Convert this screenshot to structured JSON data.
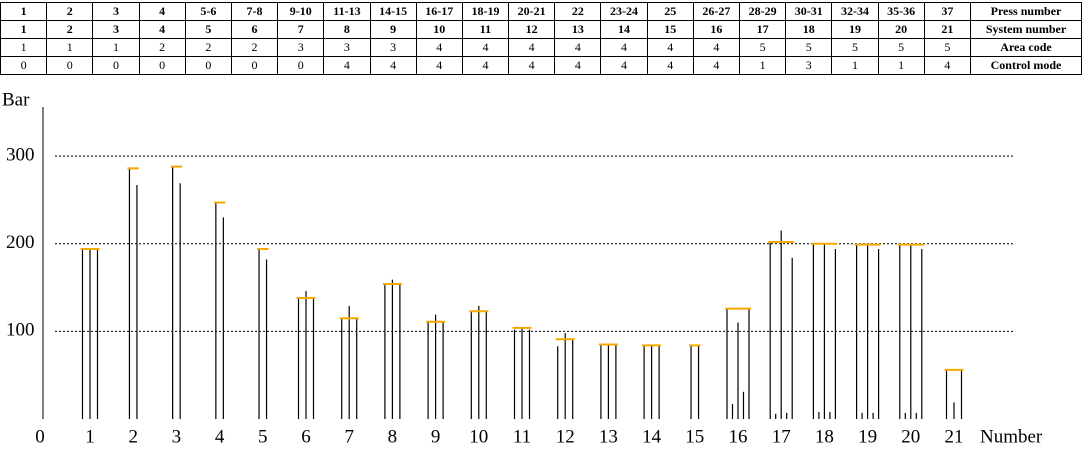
{
  "table": {
    "rows": [
      {
        "label": "Press number",
        "cells": [
          "1",
          "2",
          "3",
          "4",
          "5-6",
          "7-8",
          "9-10",
          "11-13",
          "14-15",
          "16-17",
          "18-19",
          "20-21",
          "22",
          "23-24",
          "25",
          "26-27",
          "28-29",
          "30-31",
          "32-34",
          "35-36",
          "37"
        ]
      },
      {
        "label": "System number",
        "cells": [
          "1",
          "2",
          "3",
          "4",
          "5",
          "6",
          "7",
          "8",
          "9",
          "10",
          "11",
          "12",
          "13",
          "14",
          "15",
          "16",
          "17",
          "18",
          "19",
          "20",
          "21"
        ]
      },
      {
        "label": "Area code",
        "cells": [
          "1",
          "1",
          "1",
          "2",
          "2",
          "2",
          "3",
          "3",
          "3",
          "4",
          "4",
          "4",
          "4",
          "4",
          "4",
          "4",
          "5",
          "5",
          "5",
          "5",
          "5"
        ]
      },
      {
        "label": "Control mode",
        "cells": [
          "0",
          "0",
          "0",
          "0",
          "0",
          "0",
          "0",
          "4",
          "4",
          "4",
          "4",
          "4",
          "4",
          "4",
          "4",
          "4",
          "1",
          "3",
          "1",
          "1",
          "4"
        ]
      }
    ]
  },
  "chart_data": {
    "type": "grouped-lines",
    "ylabel": "Bar",
    "xlabel": "Number",
    "origin_label": "0",
    "categories": [
      "1",
      "2",
      "3",
      "4",
      "5",
      "6",
      "7",
      "8",
      "9",
      "10",
      "11",
      "12",
      "13",
      "14",
      "15",
      "16",
      "17",
      "18",
      "19",
      "20",
      "21"
    ],
    "press_values": [
      [
        195,
        195,
        195
      ],
      [
        286,
        267
      ],
      [
        288,
        269
      ],
      [
        247,
        230
      ],
      [
        194,
        182
      ],
      [
        138,
        146,
        138
      ],
      [
        114,
        129,
        114
      ],
      [
        154,
        159,
        154
      ],
      [
        111,
        119,
        111
      ],
      [
        122,
        129,
        122
      ],
      [
        102,
        104,
        102
      ],
      [
        83,
        98,
        92
      ],
      [
        85,
        85,
        85
      ],
      [
        84,
        84,
        84
      ],
      [
        84,
        84
      ],
      [
        126,
        17,
        110,
        31,
        126
      ],
      [
        202,
        6,
        215,
        7,
        184
      ],
      [
        200,
        8,
        200,
        8,
        194
      ],
      [
        199,
        7,
        199,
        7,
        194
      ],
      [
        199,
        7,
        199,
        7,
        194
      ],
      [
        56,
        19,
        56
      ]
    ],
    "setpoints": [
      194,
      286,
      288,
      247,
      194,
      138,
      115,
      154,
      111,
      123,
      104,
      91,
      85,
      84,
      84,
      126,
      202,
      200,
      199,
      199,
      56
    ],
    "line_color": "#000000",
    "setpoint_color": "#f5a800",
    "ylim": [
      0,
      356
    ],
    "yticks": [
      100,
      200,
      300
    ],
    "grid": true
  }
}
